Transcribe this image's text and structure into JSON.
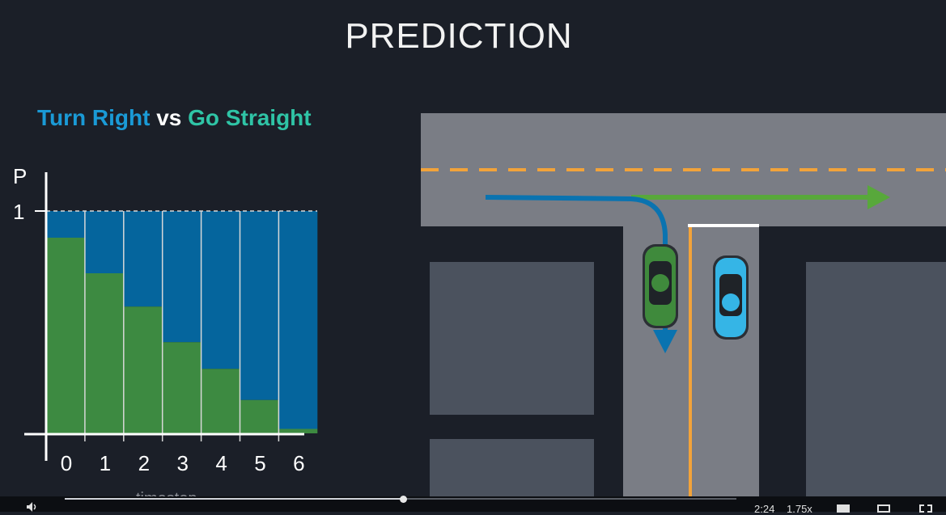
{
  "title": "PREDICTION",
  "chart_title": {
    "part1": "Turn Right",
    "part2": " vs ",
    "part3": "Go Straight"
  },
  "chart_data": {
    "type": "bar",
    "stacked": true,
    "categories": [
      "0",
      "1",
      "2",
      "3",
      "4",
      "5",
      "6"
    ],
    "series": [
      {
        "name": "Go Straight",
        "color": "#3d8a41",
        "values": [
          0.88,
          0.72,
          0.57,
          0.41,
          0.29,
          0.15,
          0.02
        ]
      },
      {
        "name": "Turn Right",
        "color": "#05659d",
        "values": [
          0.12,
          0.28,
          0.43,
          0.59,
          0.71,
          0.85,
          0.98
        ]
      }
    ],
    "ylabel": "P",
    "ytick_label": "1",
    "xlabel": "timestep",
    "ylim": [
      0,
      1
    ],
    "grid": false
  },
  "scene": {
    "road_color": "#7a7d85",
    "lane_line_color": "#f2a33a",
    "stop_line_color": "#ffffff",
    "block_color": "#4b525e",
    "turn_arrow_color": "#0a73b0",
    "straight_arrow_color": "#58a83b",
    "green_car_color": "#3f8a3c",
    "blue_car_color": "#35b5e6"
  },
  "player": {
    "time": "2:24",
    "speed": "1.75x",
    "icons": [
      "volume-icon",
      "captions-icon",
      "theater-icon",
      "fullscreen-icon"
    ]
  }
}
